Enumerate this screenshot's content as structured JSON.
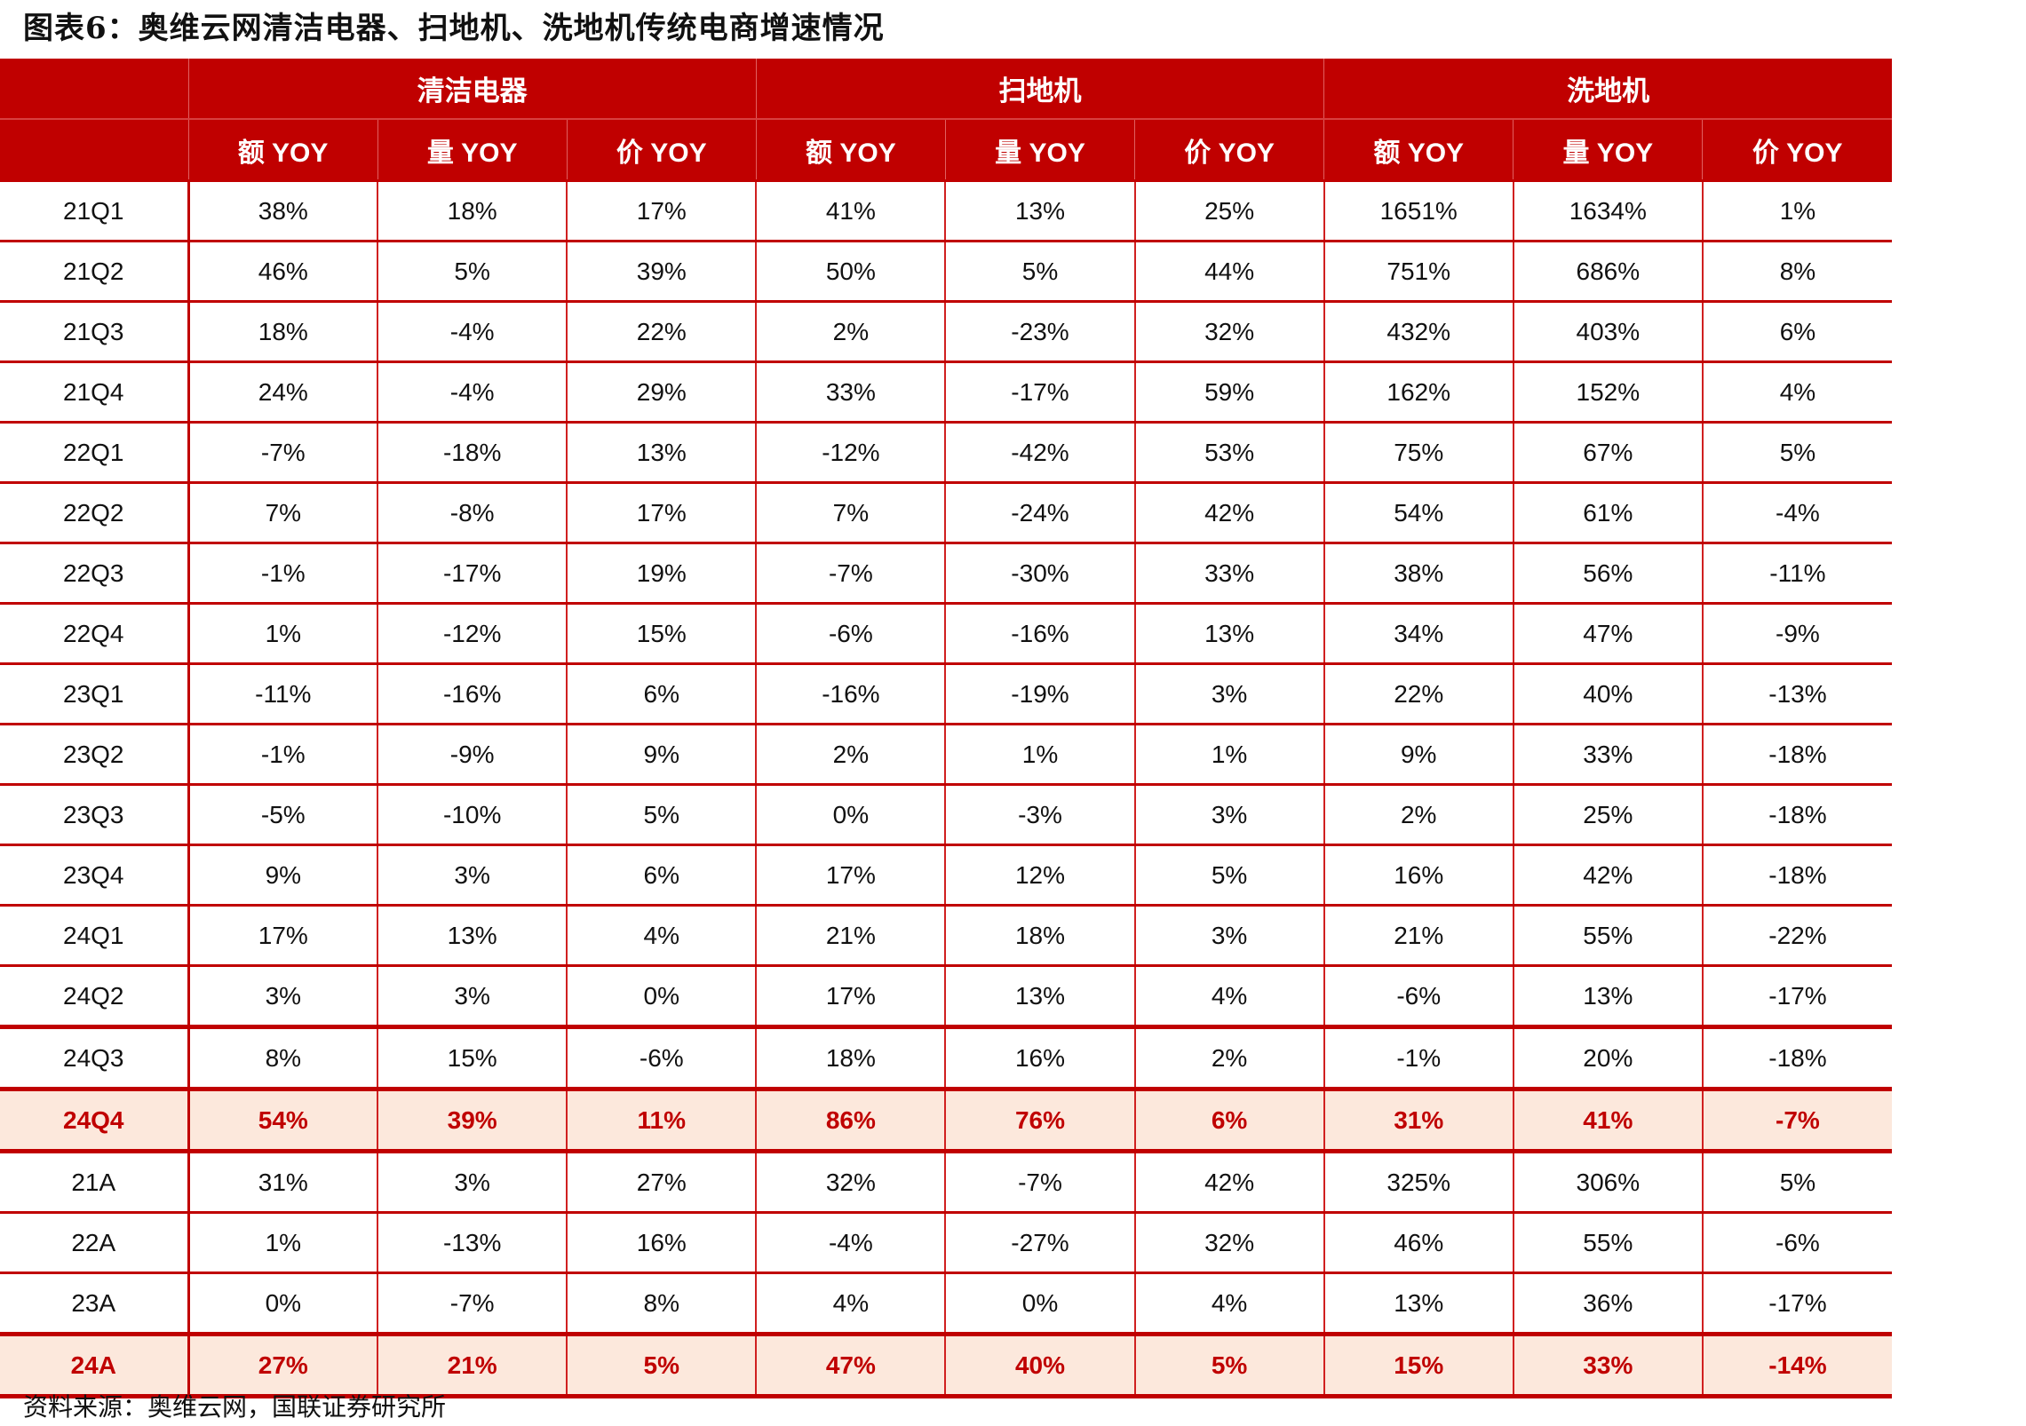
{
  "title": "图表6：奥维云网清洁电器、扫地机、洗地机传统电商增速情况",
  "table": {
    "groups": [
      "清洁电器",
      "扫地机",
      "洗地机"
    ],
    "subheaders": [
      "额 YOY",
      "量 YOY",
      "价 YOY",
      "额 YOY",
      "量 YOY",
      "价 YOY",
      "额 YOY",
      "量 YOY",
      "价 YOY"
    ],
    "rows": [
      {
        "label": "21Q1",
        "cells": [
          "38%",
          "18%",
          "17%",
          "41%",
          "13%",
          "25%",
          "1651%",
          "1634%",
          "1%"
        ]
      },
      {
        "label": "21Q2",
        "cells": [
          "46%",
          "5%",
          "39%",
          "50%",
          "5%",
          "44%",
          "751%",
          "686%",
          "8%"
        ]
      },
      {
        "label": "21Q3",
        "cells": [
          "18%",
          "-4%",
          "22%",
          "2%",
          "-23%",
          "32%",
          "432%",
          "403%",
          "6%"
        ]
      },
      {
        "label": "21Q4",
        "cells": [
          "24%",
          "-4%",
          "29%",
          "33%",
          "-17%",
          "59%",
          "162%",
          "152%",
          "4%"
        ]
      },
      {
        "label": "22Q1",
        "cells": [
          "-7%",
          "-18%",
          "13%",
          "-12%",
          "-42%",
          "53%",
          "75%",
          "67%",
          "5%"
        ]
      },
      {
        "label": "22Q2",
        "cells": [
          "7%",
          "-8%",
          "17%",
          "7%",
          "-24%",
          "42%",
          "54%",
          "61%",
          "-4%"
        ]
      },
      {
        "label": "22Q3",
        "cells": [
          "-1%",
          "-17%",
          "19%",
          "-7%",
          "-30%",
          "33%",
          "38%",
          "56%",
          "-11%"
        ]
      },
      {
        "label": "22Q4",
        "cells": [
          "1%",
          "-12%",
          "15%",
          "-6%",
          "-16%",
          "13%",
          "34%",
          "47%",
          "-9%"
        ]
      },
      {
        "label": "23Q1",
        "cells": [
          "-11%",
          "-16%",
          "6%",
          "-16%",
          "-19%",
          "3%",
          "22%",
          "40%",
          "-13%"
        ]
      },
      {
        "label": "23Q2",
        "cells": [
          "-1%",
          "-9%",
          "9%",
          "2%",
          "1%",
          "1%",
          "9%",
          "33%",
          "-18%"
        ]
      },
      {
        "label": "23Q3",
        "cells": [
          "-5%",
          "-10%",
          "5%",
          "0%",
          "-3%",
          "3%",
          "2%",
          "25%",
          "-18%"
        ]
      },
      {
        "label": "23Q4",
        "cells": [
          "9%",
          "3%",
          "6%",
          "17%",
          "12%",
          "5%",
          "16%",
          "42%",
          "-18%"
        ]
      },
      {
        "label": "24Q1",
        "cells": [
          "17%",
          "13%",
          "4%",
          "21%",
          "18%",
          "3%",
          "21%",
          "55%",
          "-22%"
        ]
      },
      {
        "label": "24Q2",
        "cells": [
          "3%",
          "3%",
          "0%",
          "17%",
          "13%",
          "4%",
          "-6%",
          "13%",
          "-17%"
        ]
      },
      {
        "label": "24Q3",
        "cells": [
          "8%",
          "15%",
          "-6%",
          "18%",
          "16%",
          "2%",
          "-1%",
          "20%",
          "-18%"
        ]
      },
      {
        "label": "24Q4",
        "cells": [
          "54%",
          "39%",
          "11%",
          "86%",
          "76%",
          "6%",
          "31%",
          "41%",
          "-7%"
        ],
        "highlight": true
      },
      {
        "label": "21A",
        "cells": [
          "31%",
          "3%",
          "27%",
          "32%",
          "-7%",
          "42%",
          "325%",
          "306%",
          "5%"
        ]
      },
      {
        "label": "22A",
        "cells": [
          "1%",
          "-13%",
          "16%",
          "-4%",
          "-27%",
          "32%",
          "46%",
          "55%",
          "-6%"
        ]
      },
      {
        "label": "23A",
        "cells": [
          "0%",
          "-7%",
          "8%",
          "4%",
          "0%",
          "4%",
          "13%",
          "36%",
          "-17%"
        ]
      },
      {
        "label": "24A",
        "cells": [
          "27%",
          "21%",
          "5%",
          "47%",
          "40%",
          "5%",
          "15%",
          "33%",
          "-14%"
        ],
        "highlight": true
      }
    ]
  },
  "colors": {
    "header_bg": "#c00000",
    "highlight_bg": "#fce8dc",
    "highlight_text": "#c00000",
    "grid": "#c00000"
  },
  "source": "资料来源：奥维云网，国联证券研究所"
}
